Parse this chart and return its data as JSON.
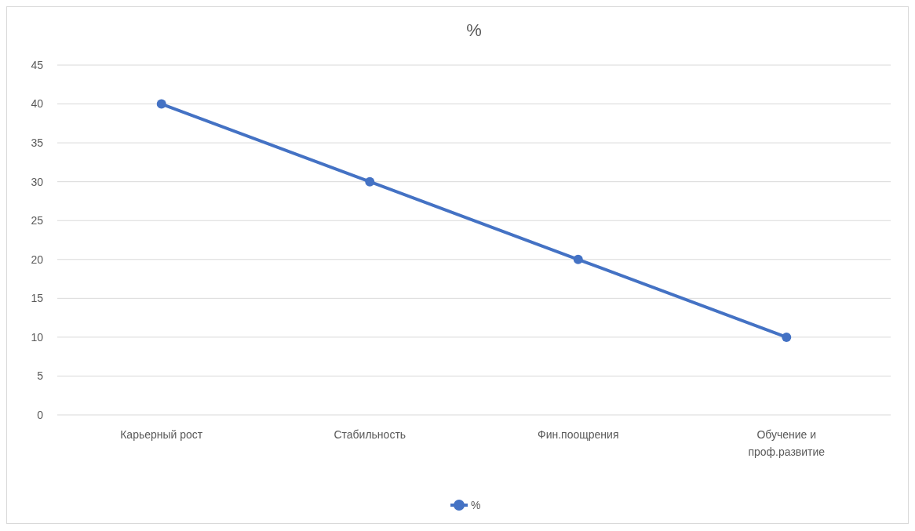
{
  "chart_data": {
    "type": "line",
    "title": "%",
    "categories": [
      "Карьерный рост",
      "Стабильность",
      "Фин.поощрения",
      "Обучение и проф.развитие"
    ],
    "series": [
      {
        "name": "%",
        "color": "#4472c4",
        "values": [
          40,
          30,
          20,
          10
        ]
      }
    ],
    "ylim": [
      0,
      45
    ],
    "yticks": [
      0,
      5,
      10,
      15,
      20,
      25,
      30,
      35,
      40,
      45
    ],
    "grid": "y",
    "legend": "bottom",
    "marker": "circle"
  }
}
